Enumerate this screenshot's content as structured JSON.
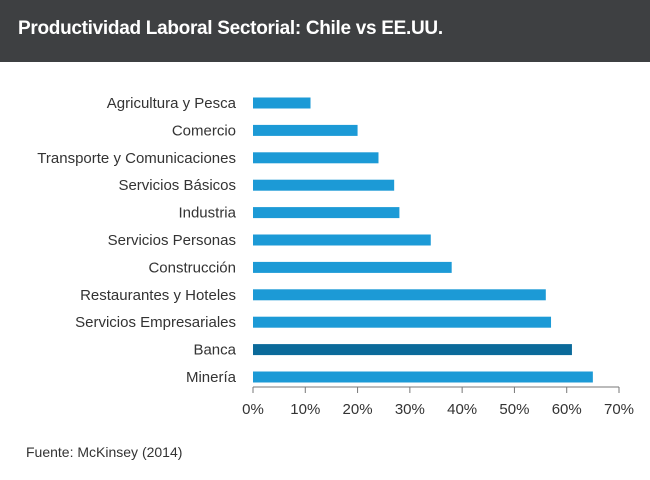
{
  "header": {
    "title": "Productividad Laboral Sectorial: Chile vs EE.UU."
  },
  "footer": {
    "source": "Fuente: McKinsey (2014)"
  },
  "colors": {
    "bar": "#1c9ad6",
    "highlight": "#0b6a9a",
    "title_bg": "#3e4042",
    "axis": "#777777"
  },
  "chart_data": {
    "type": "bar",
    "orientation": "horizontal",
    "title": "Productividad Laboral Sectorial: Chile vs EE.UU.",
    "xlabel": "",
    "ylabel": "",
    "xlim": [
      0,
      70
    ],
    "ticks": [
      0,
      10,
      20,
      30,
      40,
      50,
      60,
      70
    ],
    "tick_labels": [
      "0%",
      "10%",
      "20%",
      "30%",
      "40%",
      "50%",
      "60%",
      "70%"
    ],
    "categories": [
      "Agricultura y Pesca",
      "Comercio",
      "Transporte y Comunicaciones",
      "Servicios Básicos",
      "Industria",
      "Servicios Personas",
      "Construcción",
      "Restaurantes y Hoteles",
      "Servicios Empresariales",
      "Banca",
      "Minería"
    ],
    "values": [
      11,
      20,
      24,
      27,
      28,
      34,
      38,
      56,
      57,
      61,
      65
    ],
    "highlight": "Banca",
    "grid": false
  }
}
